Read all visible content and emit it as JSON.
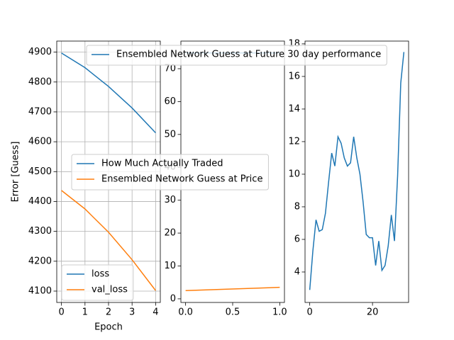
{
  "chart_data": [
    {
      "type": "line",
      "xlabel": "Epoch",
      "ylabel": "Error [Guess]",
      "x": [
        0,
        1,
        2,
        3,
        4
      ],
      "series": [
        {
          "name": "loss",
          "color": "#1f77b4",
          "values": [
            4897,
            4848,
            4785,
            4713,
            4630
          ]
        },
        {
          "name": "val_loss",
          "color": "#ff7f0e",
          "values": [
            4437,
            4375,
            4297,
            4205,
            4102
          ]
        }
      ],
      "xlim": [
        -0.2,
        4.2
      ],
      "xticks": [
        0,
        1,
        2,
        3,
        4
      ],
      "ylim": [
        4062,
        4937
      ],
      "yticks": [
        4100,
        4200,
        4300,
        4400,
        4500,
        4600,
        4700,
        4800,
        4900
      ],
      "grid": true,
      "legend": "lower left"
    },
    {
      "type": "line",
      "x": [
        0,
        1
      ],
      "series": [
        {
          "name": "How Much Actually Traded",
          "color": "#1f77b4",
          "values": [
            74.8,
            74.8
          ]
        },
        {
          "name": "Ensembled Network Guess at Price",
          "color": "#ff7f0e",
          "values": [
            2.5,
            3.5
          ]
        }
      ],
      "xlim": [
        -0.05,
        1.05
      ],
      "xticks": [
        {
          "value": 0,
          "label": "0.0"
        },
        0.5,
        {
          "value": 1,
          "label": "1.0"
        }
      ],
      "ylim": [
        -1.1,
        78.4
      ],
      "yticks": [
        0,
        10,
        20,
        30,
        40,
        50,
        60,
        70
      ],
      "grid": false,
      "legend": "center left"
    },
    {
      "type": "line",
      "x": [
        0,
        1,
        2,
        3,
        4,
        5,
        6,
        7,
        8,
        9,
        10,
        11,
        12,
        13,
        14,
        15,
        16,
        17,
        18,
        19,
        20,
        21,
        22,
        23,
        24,
        25,
        26,
        27,
        28,
        29,
        30
      ],
      "series": [
        {
          "name": "Ensembled Network Guess at Future 30 day performance",
          "color": "#1f77b4",
          "values": [
            2.9,
            5.3,
            7.2,
            6.5,
            6.6,
            7.6,
            9.5,
            11.3,
            10.5,
            12.3,
            11.9,
            11.0,
            10.5,
            10.7,
            12.3,
            11.0,
            10.0,
            8.3,
            6.3,
            6.1,
            6.1,
            4.4,
            5.9,
            4.1,
            4.4,
            5.6,
            7.5,
            5.9,
            9.9,
            15.6,
            17.5
          ]
        }
      ],
      "xlim": [
        -1.5,
        31.5
      ],
      "xticks": [
        0,
        20
      ],
      "ylim": [
        2.13,
        18.17
      ],
      "yticks": [
        4,
        6,
        8,
        10,
        12,
        14,
        16,
        18
      ],
      "grid": false,
      "legend": "upper right"
    }
  ]
}
